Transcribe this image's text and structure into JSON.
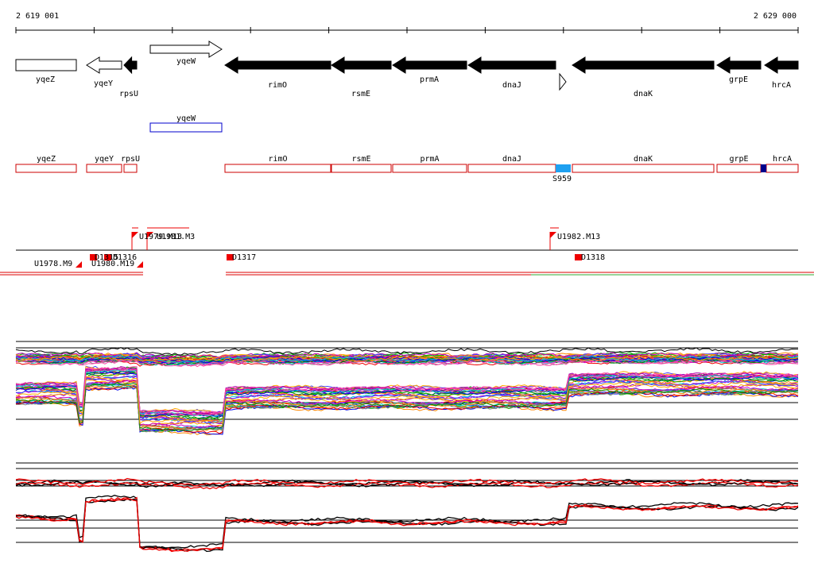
{
  "ruler": {
    "start": "2 619 001",
    "end": "2 629 000"
  },
  "genes": [
    "yqeZ",
    "yqeY",
    "rpsU",
    "yqeW",
    "rimO",
    "rsmE",
    "prmA",
    "dnaJ",
    "dnaK",
    "grpE",
    "hrcA"
  ],
  "track2": {
    "label": "yqeW"
  },
  "track3": {
    "labels": [
      "yqeZ",
      "yqeY",
      "rpsU",
      "rimO",
      "rsmE",
      "prmA",
      "dnaJ",
      "dnaK",
      "grpE",
      "hrcA"
    ],
    "marker": "S959"
  },
  "track4": {
    "labels": [
      "U1978.M9",
      "D1315",
      "D1316",
      "U1980.M19",
      "U1979.M13",
      "U1981.M3",
      "D1317",
      "U1982.M13",
      "D1318"
    ]
  }
}
